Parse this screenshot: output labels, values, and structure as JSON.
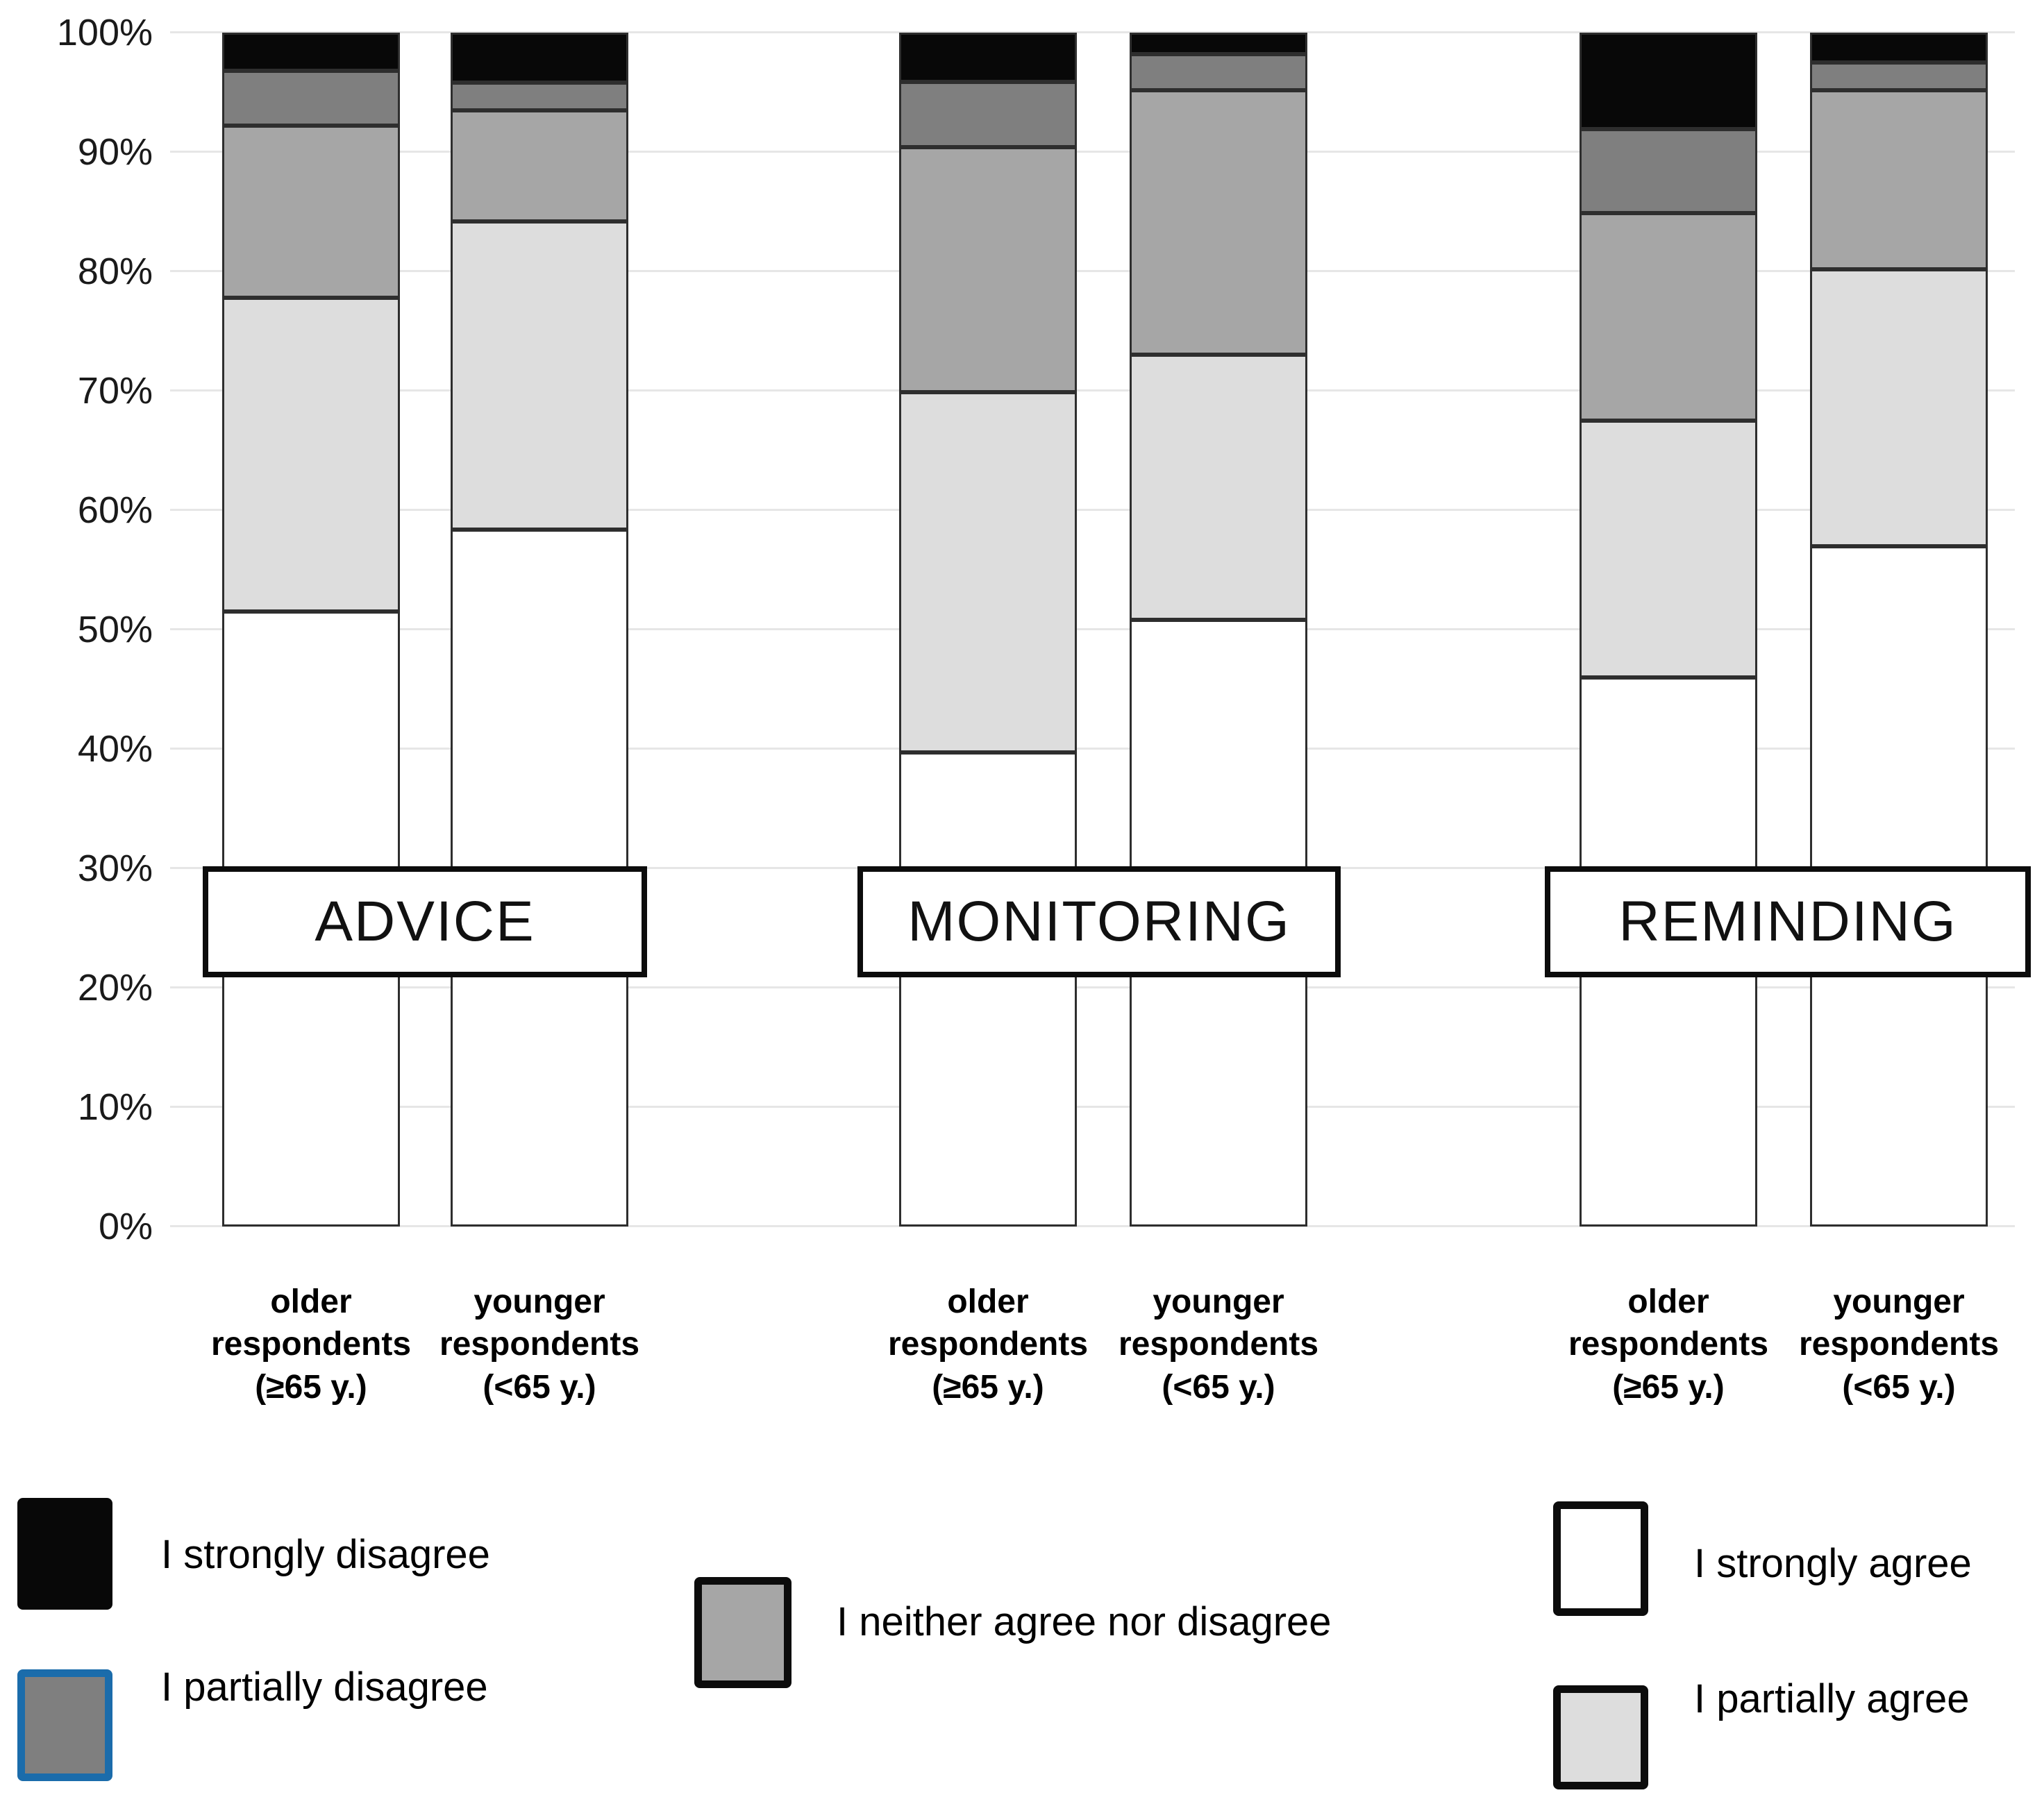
{
  "figure": {
    "background_color": "#ffffff",
    "gridline_color": "#e6e6e6",
    "segment_border_color": "#2e2e2e"
  },
  "chart_data": {
    "type": "bar",
    "subtype": "100pct-stacked-vertical",
    "title": "",
    "xlabel": "",
    "ylabel": "",
    "ylim": [
      0,
      100
    ],
    "grid": true,
    "y_axis_tick_labels": [
      "0%",
      "10%",
      "20%",
      "30%",
      "40%",
      "50%",
      "60%",
      "70%",
      "80%",
      "90%",
      "100%"
    ],
    "stack_order_bottom_to_top": [
      "strongly_agree",
      "partially_agree",
      "neither",
      "partially_disagree",
      "strongly_disagree"
    ],
    "series_colors": {
      "strongly_agree": "#ffffff",
      "partially_agree": "#dddddd",
      "neither": "#a6a6a6",
      "partially_disagree": "#7f7f7f",
      "strongly_disagree": "#080808"
    },
    "groups": [
      {
        "name": "ADVICE",
        "bars": [
          {
            "category_lines": [
              "older",
              "respondents",
              "(≥65 y.)"
            ],
            "values": {
              "strongly_agree": 51.5,
              "partially_agree": 26.3,
              "neither": 14.4,
              "partially_disagree": 4.6,
              "strongly_disagree": 3.2
            }
          },
          {
            "category_lines": [
              "younger",
              "respondents",
              "(<65 y.)"
            ],
            "values": {
              "strongly_agree": 58.4,
              "partially_agree": 25.8,
              "neither": 9.3,
              "partially_disagree": 2.3,
              "strongly_disagree": 4.2
            }
          }
        ]
      },
      {
        "name": "MONITORING",
        "bars": [
          {
            "category_lines": [
              "older",
              "respondents",
              "(≥65 y.)"
            ],
            "values": {
              "strongly_agree": 39.7,
              "partially_agree": 30.2,
              "neither": 20.5,
              "partially_disagree": 5.5,
              "strongly_disagree": 4.1
            }
          },
          {
            "category_lines": [
              "younger",
              "respondents",
              "(<65 y.)"
            ],
            "values": {
              "strongly_agree": 50.8,
              "partially_agree": 22.2,
              "neither": 22.2,
              "partially_disagree": 3.0,
              "strongly_disagree": 1.8
            }
          }
        ]
      },
      {
        "name": "REMINDING",
        "bars": [
          {
            "category_lines": [
              "older",
              "respondents",
              "(≥65 y.)"
            ],
            "values": {
              "strongly_agree": 46.0,
              "partially_agree": 21.5,
              "neither": 17.4,
              "partially_disagree": 7.0,
              "strongly_disagree": 8.1
            }
          },
          {
            "category_lines": [
              "younger",
              "respondents",
              "(<65 y.)"
            ],
            "values": {
              "strongly_agree": 57.0,
              "partially_agree": 23.2,
              "neither": 15.0,
              "partially_disagree": 2.3,
              "strongly_disagree": 2.5
            }
          }
        ]
      }
    ],
    "legend": {
      "position": "bottom",
      "items": [
        {
          "key": "strongly_disagree",
          "label": "I strongly disagree",
          "fill": "#080808",
          "border_color": "#080808"
        },
        {
          "key": "partially_disagree",
          "label": "I partially disagree",
          "fill": "#7f7f7f",
          "border_color": "#1b6cab"
        },
        {
          "key": "neither",
          "label": "I neither agree nor disagree",
          "fill": "#a6a6a6",
          "border_color": "#0c0c0c"
        },
        {
          "key": "strongly_agree",
          "label": "I strongly agree",
          "fill": "#ffffff",
          "border_color": "#0c0c0c"
        },
        {
          "key": "partially_agree",
          "label": "I partially agree",
          "fill": "#dddddd",
          "border_color": "#0c0c0c"
        }
      ]
    }
  }
}
